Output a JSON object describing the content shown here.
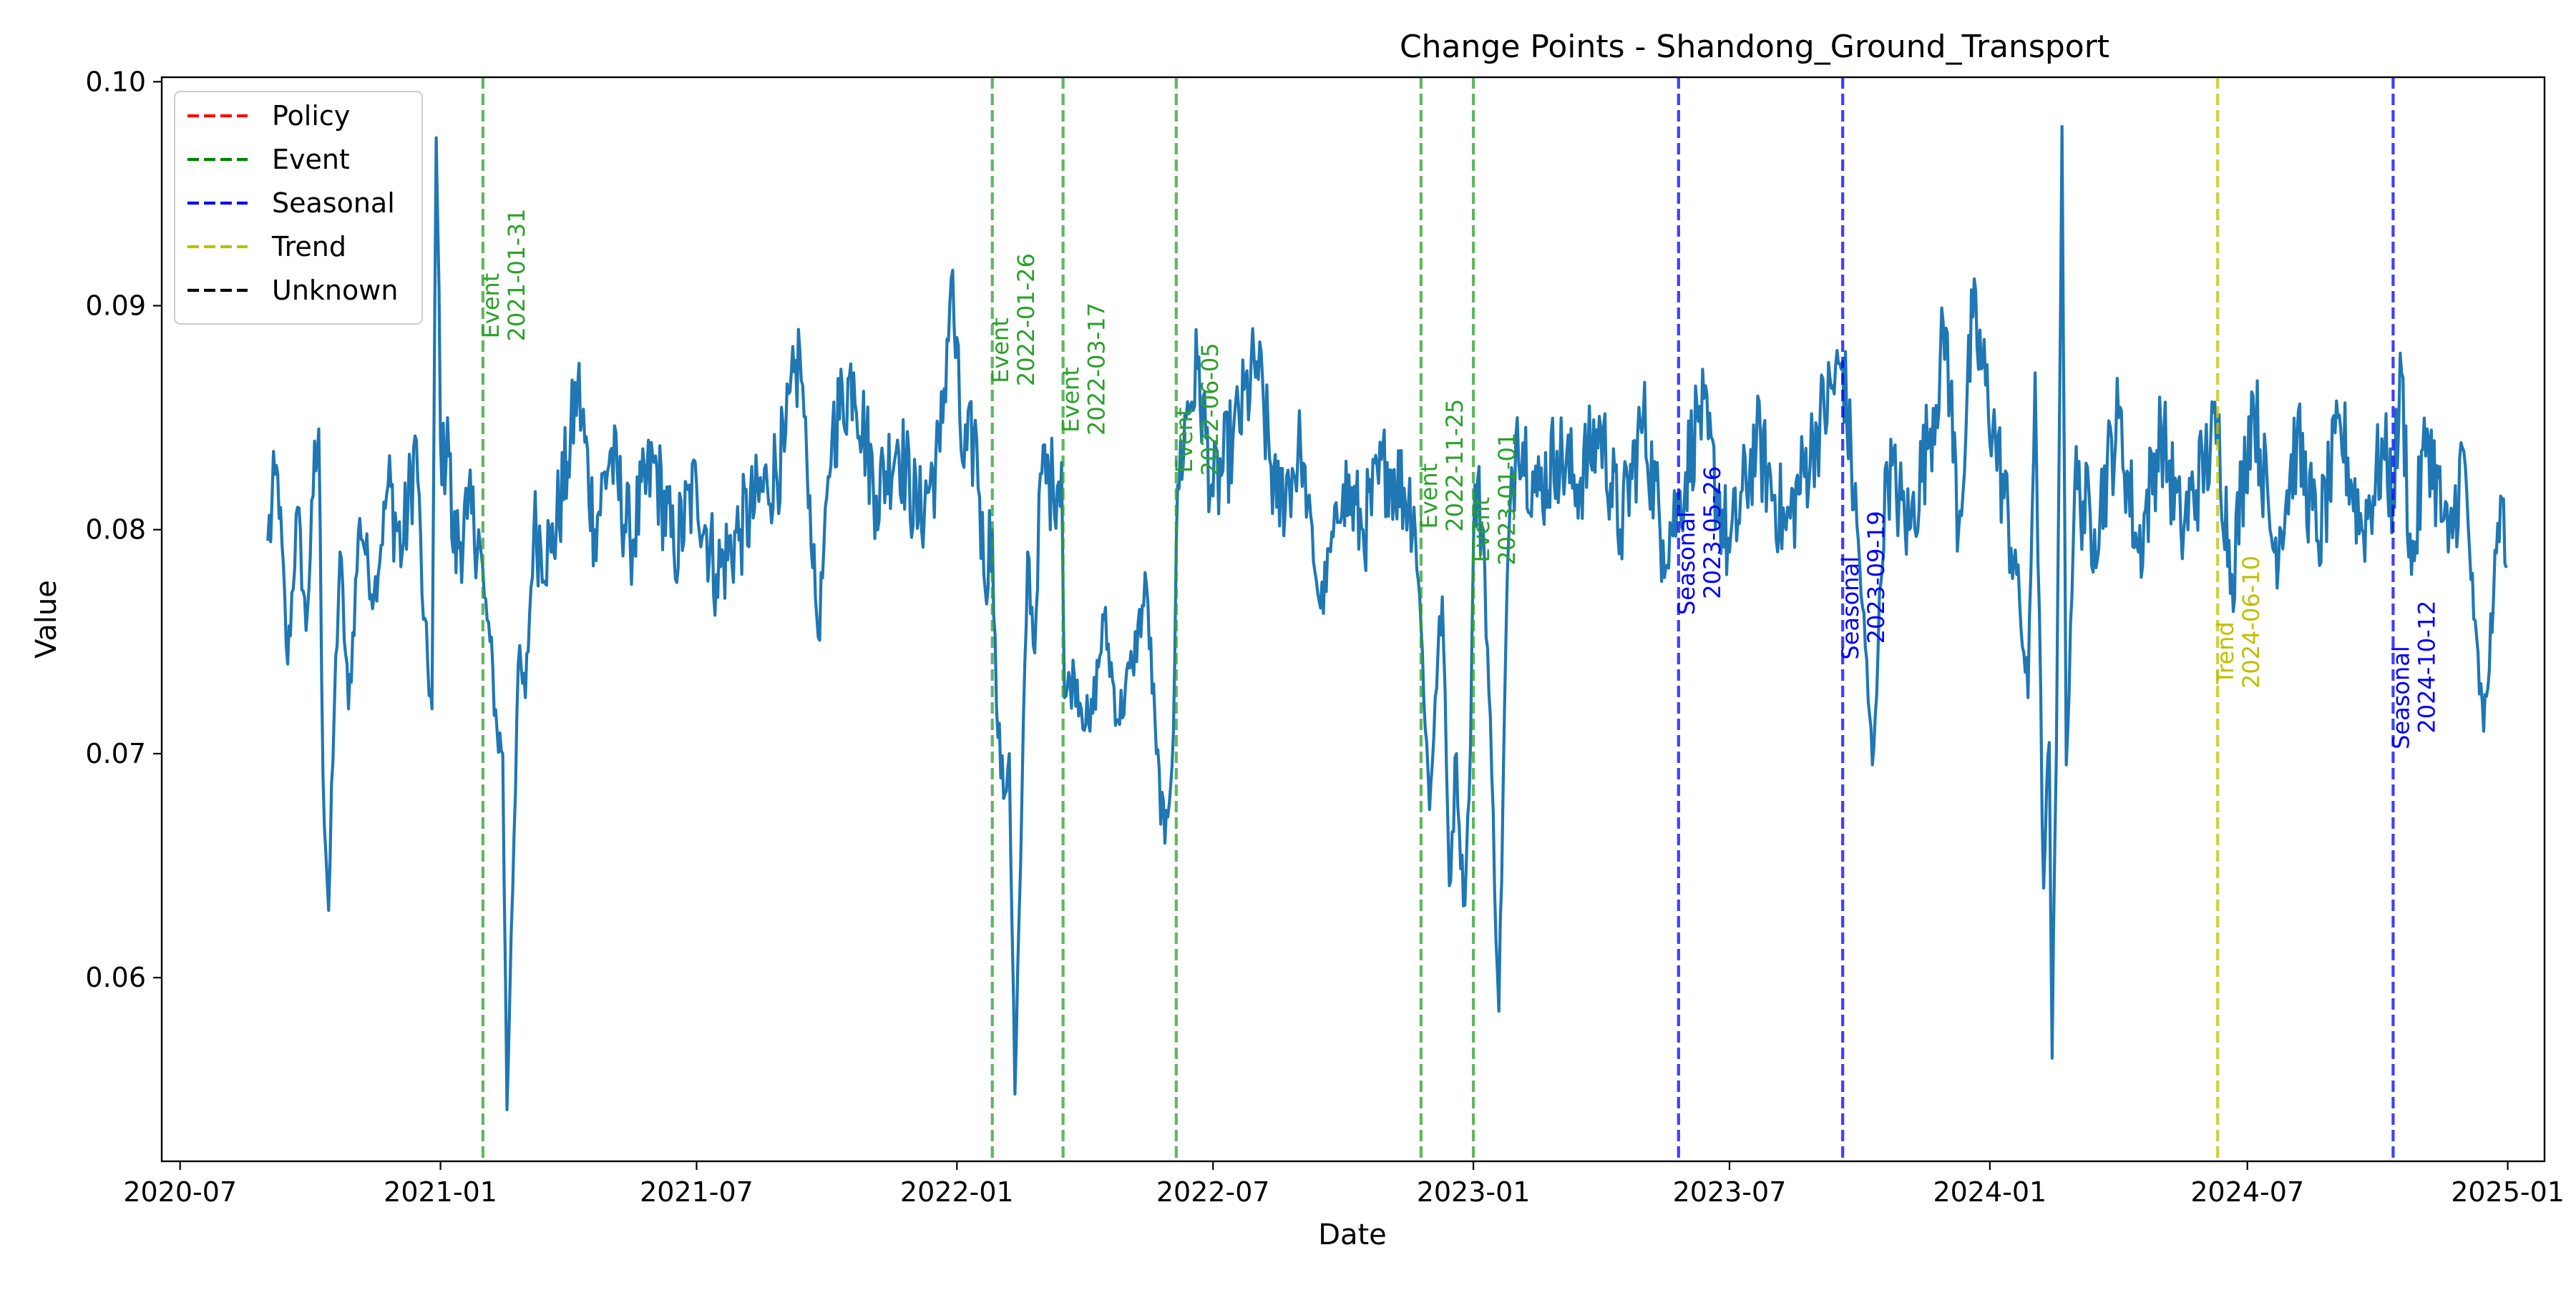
{
  "chart_data": {
    "type": "line",
    "title": "Change Points - Shandong_Ground_Transport",
    "xlabel": "Date",
    "ylabel": "Value",
    "x_range": [
      "2020-06-18",
      "2025-01-27"
    ],
    "ylim": [
      0.0518,
      0.1002
    ],
    "x_ticks": [
      "2020-07",
      "2021-01",
      "2021-07",
      "2022-01",
      "2022-07",
      "2023-01",
      "2023-07",
      "2024-01",
      "2024-07",
      "2025-01"
    ],
    "y_ticks": [
      "0.06",
      "0.07",
      "0.08",
      "0.09",
      "0.10"
    ],
    "grid": false,
    "legend_position": "top-left",
    "series": [
      {
        "color": "#1f77b4",
        "date_start": "2020-09-01",
        "date_end": "2024-12-31",
        "keypoints": [
          {
            "x": "2020-09-01",
            "y": 0.0795
          },
          {
            "x": "2020-09-08",
            "y": 0.0825
          },
          {
            "x": "2020-09-15",
            "y": 0.074
          },
          {
            "x": "2020-09-22",
            "y": 0.081
          },
          {
            "x": "2020-09-28",
            "y": 0.0755
          },
          {
            "x": "2020-10-03",
            "y": 0.0815
          },
          {
            "x": "2020-10-07",
            "y": 0.0845
          },
          {
            "x": "2020-10-10",
            "y": 0.069
          },
          {
            "x": "2020-10-14",
            "y": 0.063
          },
          {
            "x": "2020-10-18",
            "y": 0.072
          },
          {
            "x": "2020-10-22",
            "y": 0.079
          },
          {
            "x": "2020-10-28",
            "y": 0.072
          },
          {
            "x": "2020-11-05",
            "y": 0.0805
          },
          {
            "x": "2020-11-15",
            "y": 0.077
          },
          {
            "x": "2020-11-25",
            "y": 0.082
          },
          {
            "x": "2020-12-05",
            "y": 0.079
          },
          {
            "x": "2020-12-15",
            "y": 0.084
          },
          {
            "x": "2020-12-20",
            "y": 0.076
          },
          {
            "x": "2020-12-26",
            "y": 0.072
          },
          {
            "x": "2020-12-29",
            "y": 0.0975
          },
          {
            "x": "2021-01-02",
            "y": 0.082
          },
          {
            "x": "2021-01-06",
            "y": 0.085
          },
          {
            "x": "2021-01-10",
            "y": 0.079
          },
          {
            "x": "2021-01-20",
            "y": 0.0805
          },
          {
            "x": "2021-01-28",
            "y": 0.08
          },
          {
            "x": "2021-02-01",
            "y": 0.077
          },
          {
            "x": "2021-02-05",
            "y": 0.075
          },
          {
            "x": "2021-02-10",
            "y": 0.071
          },
          {
            "x": "2021-02-14",
            "y": 0.07
          },
          {
            "x": "2021-02-17",
            "y": 0.0541
          },
          {
            "x": "2021-02-20",
            "y": 0.062
          },
          {
            "x": "2021-02-25",
            "y": 0.074
          },
          {
            "x": "2021-03-02",
            "y": 0.0725
          },
          {
            "x": "2021-03-08",
            "y": 0.08
          },
          {
            "x": "2021-03-20",
            "y": 0.079
          },
          {
            "x": "2021-04-01",
            "y": 0.083
          },
          {
            "x": "2021-04-08",
            "y": 0.0865
          },
          {
            "x": "2021-04-20",
            "y": 0.08
          },
          {
            "x": "2021-05-01",
            "y": 0.0835
          },
          {
            "x": "2021-05-15",
            "y": 0.0795
          },
          {
            "x": "2021-06-01",
            "y": 0.083
          },
          {
            "x": "2021-06-15",
            "y": 0.079
          },
          {
            "x": "2021-07-01",
            "y": 0.082
          },
          {
            "x": "2021-07-15",
            "y": 0.078
          },
          {
            "x": "2021-08-01",
            "y": 0.08
          },
          {
            "x": "2021-08-20",
            "y": 0.082
          },
          {
            "x": "2021-09-01",
            "y": 0.0835
          },
          {
            "x": "2021-09-12",
            "y": 0.088
          },
          {
            "x": "2021-09-25",
            "y": 0.0752
          },
          {
            "x": "2021-10-05",
            "y": 0.0845
          },
          {
            "x": "2021-10-20",
            "y": 0.087
          },
          {
            "x": "2021-11-05",
            "y": 0.0815
          },
          {
            "x": "2021-11-20",
            "y": 0.084
          },
          {
            "x": "2021-12-05",
            "y": 0.0805
          },
          {
            "x": "2021-12-20",
            "y": 0.0835
          },
          {
            "x": "2021-12-28",
            "y": 0.0912
          },
          {
            "x": "2022-01-05",
            "y": 0.083
          },
          {
            "x": "2022-01-15",
            "y": 0.084
          },
          {
            "x": "2022-01-20",
            "y": 0.078
          },
          {
            "x": "2022-01-26",
            "y": 0.08
          },
          {
            "x": "2022-01-29",
            "y": 0.072
          },
          {
            "x": "2022-02-03",
            "y": 0.068
          },
          {
            "x": "2022-02-07",
            "y": 0.07
          },
          {
            "x": "2022-02-11",
            "y": 0.0548
          },
          {
            "x": "2022-02-15",
            "y": 0.065
          },
          {
            "x": "2022-02-20",
            "y": 0.079
          },
          {
            "x": "2022-02-25",
            "y": 0.0745
          },
          {
            "x": "2022-03-01",
            "y": 0.0825
          },
          {
            "x": "2022-03-10",
            "y": 0.082
          },
          {
            "x": "2022-03-16",
            "y": 0.083
          },
          {
            "x": "2022-03-18",
            "y": 0.0725
          },
          {
            "x": "2022-03-25",
            "y": 0.0735
          },
          {
            "x": "2022-04-05",
            "y": 0.071
          },
          {
            "x": "2022-04-15",
            "y": 0.076
          },
          {
            "x": "2022-04-25",
            "y": 0.0715
          },
          {
            "x": "2022-05-05",
            "y": 0.074
          },
          {
            "x": "2022-05-15",
            "y": 0.0775
          },
          {
            "x": "2022-05-22",
            "y": 0.07
          },
          {
            "x": "2022-05-28",
            "y": 0.066
          },
          {
            "x": "2022-06-03",
            "y": 0.071
          },
          {
            "x": "2022-06-06",
            "y": 0.082
          },
          {
            "x": "2022-06-12",
            "y": 0.085
          },
          {
            "x": "2022-06-20",
            "y": 0.0872
          },
          {
            "x": "2022-07-01",
            "y": 0.0815
          },
          {
            "x": "2022-07-15",
            "y": 0.084
          },
          {
            "x": "2022-08-01",
            "y": 0.0875
          },
          {
            "x": "2022-08-15",
            "y": 0.081
          },
          {
            "x": "2022-09-01",
            "y": 0.0835
          },
          {
            "x": "2022-09-15",
            "y": 0.0765
          },
          {
            "x": "2022-10-01",
            "y": 0.082
          },
          {
            "x": "2022-10-15",
            "y": 0.08
          },
          {
            "x": "2022-11-01",
            "y": 0.083
          },
          {
            "x": "2022-11-20",
            "y": 0.081
          },
          {
            "x": "2022-11-26",
            "y": 0.0745
          },
          {
            "x": "2022-12-01",
            "y": 0.0675
          },
          {
            "x": "2022-12-05",
            "y": 0.0725
          },
          {
            "x": "2022-12-10",
            "y": 0.077
          },
          {
            "x": "2022-12-15",
            "y": 0.0641
          },
          {
            "x": "2022-12-20",
            "y": 0.07
          },
          {
            "x": "2022-12-25",
            "y": 0.0632
          },
          {
            "x": "2022-12-29",
            "y": 0.068
          },
          {
            "x": "2023-01-02",
            "y": 0.082
          },
          {
            "x": "2023-01-08",
            "y": 0.08
          },
          {
            "x": "2023-01-14",
            "y": 0.069
          },
          {
            "x": "2023-01-19",
            "y": 0.0585
          },
          {
            "x": "2023-01-25",
            "y": 0.078
          },
          {
            "x": "2023-02-01",
            "y": 0.085
          },
          {
            "x": "2023-02-15",
            "y": 0.0815
          },
          {
            "x": "2023-03-01",
            "y": 0.0835
          },
          {
            "x": "2023-03-15",
            "y": 0.082
          },
          {
            "x": "2023-04-01",
            "y": 0.0845
          },
          {
            "x": "2023-04-15",
            "y": 0.08
          },
          {
            "x": "2023-05-01",
            "y": 0.085
          },
          {
            "x": "2023-05-15",
            "y": 0.0795
          },
          {
            "x": "2023-05-26",
            "y": 0.081
          },
          {
            "x": "2023-06-10",
            "y": 0.0855
          },
          {
            "x": "2023-07-01",
            "y": 0.079
          },
          {
            "x": "2023-07-20",
            "y": 0.084
          },
          {
            "x": "2023-08-10",
            "y": 0.08
          },
          {
            "x": "2023-09-01",
            "y": 0.0845
          },
          {
            "x": "2023-09-19",
            "y": 0.0875
          },
          {
            "x": "2023-10-01",
            "y": 0.0785
          },
          {
            "x": "2023-10-10",
            "y": 0.0695
          },
          {
            "x": "2023-10-20",
            "y": 0.083
          },
          {
            "x": "2023-11-05",
            "y": 0.08
          },
          {
            "x": "2023-11-20",
            "y": 0.0845
          },
          {
            "x": "2023-12-01",
            "y": 0.089
          },
          {
            "x": "2023-12-10",
            "y": 0.08
          },
          {
            "x": "2023-12-20",
            "y": 0.0895
          },
          {
            "x": "2024-01-05",
            "y": 0.084
          },
          {
            "x": "2024-01-20",
            "y": 0.078
          },
          {
            "x": "2024-01-28",
            "y": 0.0725
          },
          {
            "x": "2024-02-02",
            "y": 0.087
          },
          {
            "x": "2024-02-08",
            "y": 0.064
          },
          {
            "x": "2024-02-12",
            "y": 0.0705
          },
          {
            "x": "2024-02-14",
            "y": 0.0564
          },
          {
            "x": "2024-02-17",
            "y": 0.07
          },
          {
            "x": "2024-02-21",
            "y": 0.098
          },
          {
            "x": "2024-02-24",
            "y": 0.0695
          },
          {
            "x": "2024-03-01",
            "y": 0.082
          },
          {
            "x": "2024-03-15",
            "y": 0.08
          },
          {
            "x": "2024-04-01",
            "y": 0.085
          },
          {
            "x": "2024-04-15",
            "y": 0.079
          },
          {
            "x": "2024-05-01",
            "y": 0.0845
          },
          {
            "x": "2024-05-15",
            "y": 0.08
          },
          {
            "x": "2024-06-01",
            "y": 0.083
          },
          {
            "x": "2024-06-10",
            "y": 0.0845
          },
          {
            "x": "2024-06-20",
            "y": 0.078
          },
          {
            "x": "2024-07-05",
            "y": 0.086
          },
          {
            "x": "2024-07-20",
            "y": 0.079
          },
          {
            "x": "2024-08-05",
            "y": 0.084
          },
          {
            "x": "2024-08-20",
            "y": 0.0795
          },
          {
            "x": "2024-09-05",
            "y": 0.0845
          },
          {
            "x": "2024-09-20",
            "y": 0.08
          },
          {
            "x": "2024-10-05",
            "y": 0.0835
          },
          {
            "x": "2024-10-12",
            "y": 0.0815
          },
          {
            "x": "2024-10-18",
            "y": 0.087
          },
          {
            "x": "2024-10-25",
            "y": 0.078
          },
          {
            "x": "2024-11-05",
            "y": 0.0845
          },
          {
            "x": "2024-11-20",
            "y": 0.079
          },
          {
            "x": "2024-12-01",
            "y": 0.0835
          },
          {
            "x": "2024-12-08",
            "y": 0.076
          },
          {
            "x": "2024-12-15",
            "y": 0.071
          },
          {
            "x": "2024-12-22",
            "y": 0.077
          },
          {
            "x": "2024-12-27",
            "y": 0.0815
          },
          {
            "x": "2024-12-31",
            "y": 0.0783
          }
        ]
      }
    ],
    "change_points": [
      {
        "date": "2021-01-31",
        "type": "Event",
        "color": "#2ca02c",
        "label_type": "Event",
        "label_date": "2021-01-31",
        "label_y": 0.09
      },
      {
        "date": "2022-01-26",
        "type": "Event",
        "color": "#2ca02c",
        "label_type": "Event",
        "label_date": "2022-01-26",
        "label_y": 0.088
      },
      {
        "date": "2022-03-17",
        "type": "Event",
        "color": "#2ca02c",
        "label_type": "Event",
        "label_date": "2022-03-17",
        "label_y": 0.0858
      },
      {
        "date": "2022-06-05",
        "type": "Event",
        "color": "#2ca02c",
        "label_type": "Event",
        "label_date": "2022-06-05",
        "label_y": 0.084
      },
      {
        "date": "2022-11-25",
        "type": "Event",
        "color": "#2ca02c",
        "label_type": "Event",
        "label_date": "2022-11-25",
        "label_y": 0.0815
      },
      {
        "date": "2023-01-01",
        "type": "Event",
        "color": "#2ca02c",
        "label_type": "Event",
        "label_date": "2023-01-01",
        "label_y": 0.08
      },
      {
        "date": "2023-05-26",
        "type": "Seasonal",
        "color": "#0000ff",
        "label_type": "Seasonal",
        "label_date": "2023-05-26",
        "label_y": 0.0785
      },
      {
        "date": "2023-09-19",
        "type": "Seasonal",
        "color": "#0000ff",
        "label_type": "Seasonal",
        "label_date": "2023-09-19",
        "label_y": 0.0765
      },
      {
        "date": "2024-06-10",
        "type": "Trend",
        "color": "#bfbf00",
        "label_type": "Trend",
        "label_date": "2024-06-10",
        "label_y": 0.0745
      },
      {
        "date": "2024-10-12",
        "type": "Seasonal",
        "color": "#0000ff",
        "label_type": "Seasonal",
        "label_date": "2024-10-12",
        "label_y": 0.0725
      }
    ],
    "legend": [
      {
        "label": "Policy",
        "color": "#ff0000"
      },
      {
        "label": "Event",
        "color": "#008000"
      },
      {
        "label": "Seasonal",
        "color": "#0000ff"
      },
      {
        "label": "Trend",
        "color": "#bfbf00"
      },
      {
        "label": "Unknown",
        "color": "#000000"
      }
    ]
  }
}
